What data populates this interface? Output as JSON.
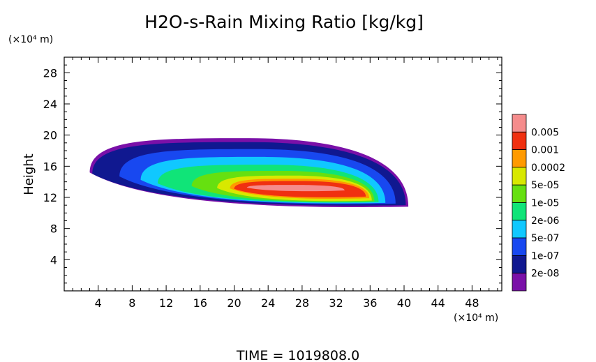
{
  "chart_data": {
    "type": "heatmap",
    "title": "H2O-s-Rain Mixing Ratio [kg/kg]",
    "ylabel": "Height",
    "y_unit": "(×10⁴ m)",
    "x_unit": "(×10⁴ m)",
    "footer": "TIME = 1019808.0",
    "xlim": [
      0,
      51.5
    ],
    "ylim": [
      0,
      30
    ],
    "x_ticks": [
      4,
      8,
      12,
      16,
      20,
      24,
      28,
      32,
      36,
      40,
      44,
      48
    ],
    "y_ticks": [
      4,
      8,
      12,
      16,
      20,
      24,
      28
    ],
    "colorbar": {
      "labels": [
        "0.005",
        "0.001",
        "0.0002",
        "5e-05",
        "1e-05",
        "2e-06",
        "5e-07",
        "1e-07",
        "2e-08"
      ],
      "colors": [
        "#f58c8c",
        "#f03010",
        "#ff9a00",
        "#d8e800",
        "#66e010",
        "#10e478",
        "#10c8ff",
        "#1848f0",
        "#101890",
        "#7a10a8"
      ]
    },
    "contours": [
      {
        "level": "2e-08",
        "color": "#7a10a8",
        "x0": 3.0,
        "x1": 40.5,
        "top": 19.6,
        "bottom": 10.8
      },
      {
        "level": "1e-07",
        "color": "#101890",
        "x0": 3.3,
        "x1": 40.2,
        "top": 19.1,
        "bottom": 11.0
      },
      {
        "level": "1e-07",
        "color": "#1848f0",
        "x0": 6.5,
        "x1": 39.0,
        "top": 18.2,
        "bottom": 11.2
      },
      {
        "level": "5e-07",
        "color": "#10c8ff",
        "x0": 9.0,
        "x1": 37.8,
        "top": 17.2,
        "bottom": 11.3
      },
      {
        "level": "2e-06",
        "color": "#10e478",
        "x0": 11.0,
        "x1": 37.0,
        "top": 16.2,
        "bottom": 11.4
      },
      {
        "level": "1e-05",
        "color": "#66e010",
        "x0": 15.0,
        "x1": 36.5,
        "top": 15.4,
        "bottom": 11.5
      },
      {
        "level": "5e-05",
        "color": "#d8e800",
        "x0": 18.0,
        "x1": 36.2,
        "top": 14.8,
        "bottom": 11.6
      },
      {
        "level": "0.0002",
        "color": "#ff9a00",
        "x0": 19.5,
        "x1": 35.9,
        "top": 14.4,
        "bottom": 11.9
      },
      {
        "level": "0.001",
        "color": "#f03010",
        "x0": 20.0,
        "x1": 35.5,
        "top": 14.1,
        "bottom": 12.1
      },
      {
        "level": "0.005",
        "color": "#f58c8c",
        "x0": 21.5,
        "x1": 33.0,
        "top": 13.6,
        "bottom": 12.9
      }
    ]
  }
}
